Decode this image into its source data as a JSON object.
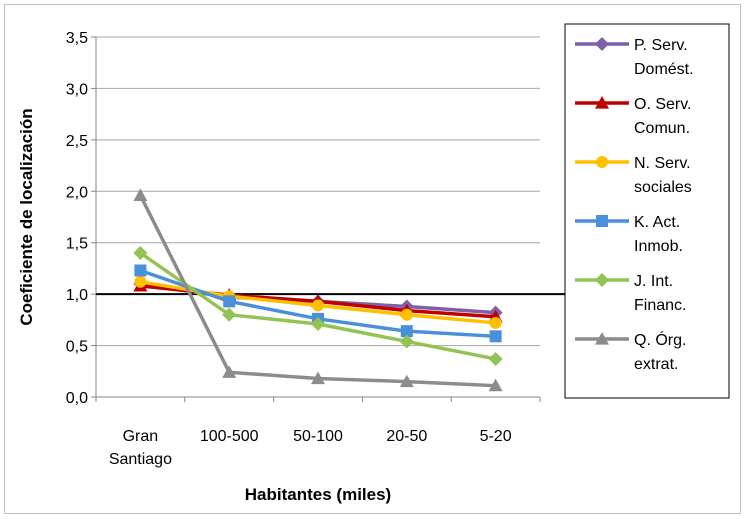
{
  "chart_data": {
    "type": "line",
    "categories": [
      [
        "Gran",
        "Santiago"
      ],
      [
        "100-500"
      ],
      [
        "50-100"
      ],
      [
        "20-50"
      ],
      [
        "5-20"
      ]
    ],
    "series": [
      {
        "name": [
          "P. Serv.",
          "Domést."
        ],
        "color": "#7f5fa8",
        "marker": "diamond",
        "values": [
          1.1,
          0.97,
          0.93,
          0.88,
          0.82
        ]
      },
      {
        "name": [
          "O. Serv.",
          "Comun."
        ],
        "color": "#c00000",
        "marker": "triangle",
        "values": [
          1.08,
          0.99,
          0.93,
          0.84,
          0.78
        ]
      },
      {
        "name": [
          "N. Serv.",
          "sociales"
        ],
        "color": "#ffc000",
        "marker": "circle",
        "values": [
          1.12,
          0.98,
          0.89,
          0.8,
          0.72
        ]
      },
      {
        "name": [
          "K. Act.",
          "Inmob."
        ],
        "color": "#4a8fd9",
        "marker": "square",
        "values": [
          1.23,
          0.93,
          0.76,
          0.64,
          0.59
        ]
      },
      {
        "name": [
          "J. Int.",
          "Financ."
        ],
        "color": "#92c353",
        "marker": "diamond",
        "values": [
          1.4,
          0.8,
          0.71,
          0.54,
          0.37
        ]
      },
      {
        "name": [
          "Q. Órg.",
          "extrat."
        ],
        "color": "#8c8c8c",
        "marker": "triangle",
        "values": [
          1.96,
          0.24,
          0.18,
          0.15,
          0.11
        ]
      }
    ],
    "xlabel": "Habitantes (miles)",
    "ylabel": "Coeficiente de localización",
    "ylim": [
      0,
      3.5
    ],
    "yticks": [
      "0,0",
      "0,5",
      "1,0",
      "1,5",
      "2,0",
      "2,5",
      "3,0",
      "3,5"
    ],
    "reference_line": 1.0,
    "grid": "horizontal",
    "legend": "right"
  }
}
